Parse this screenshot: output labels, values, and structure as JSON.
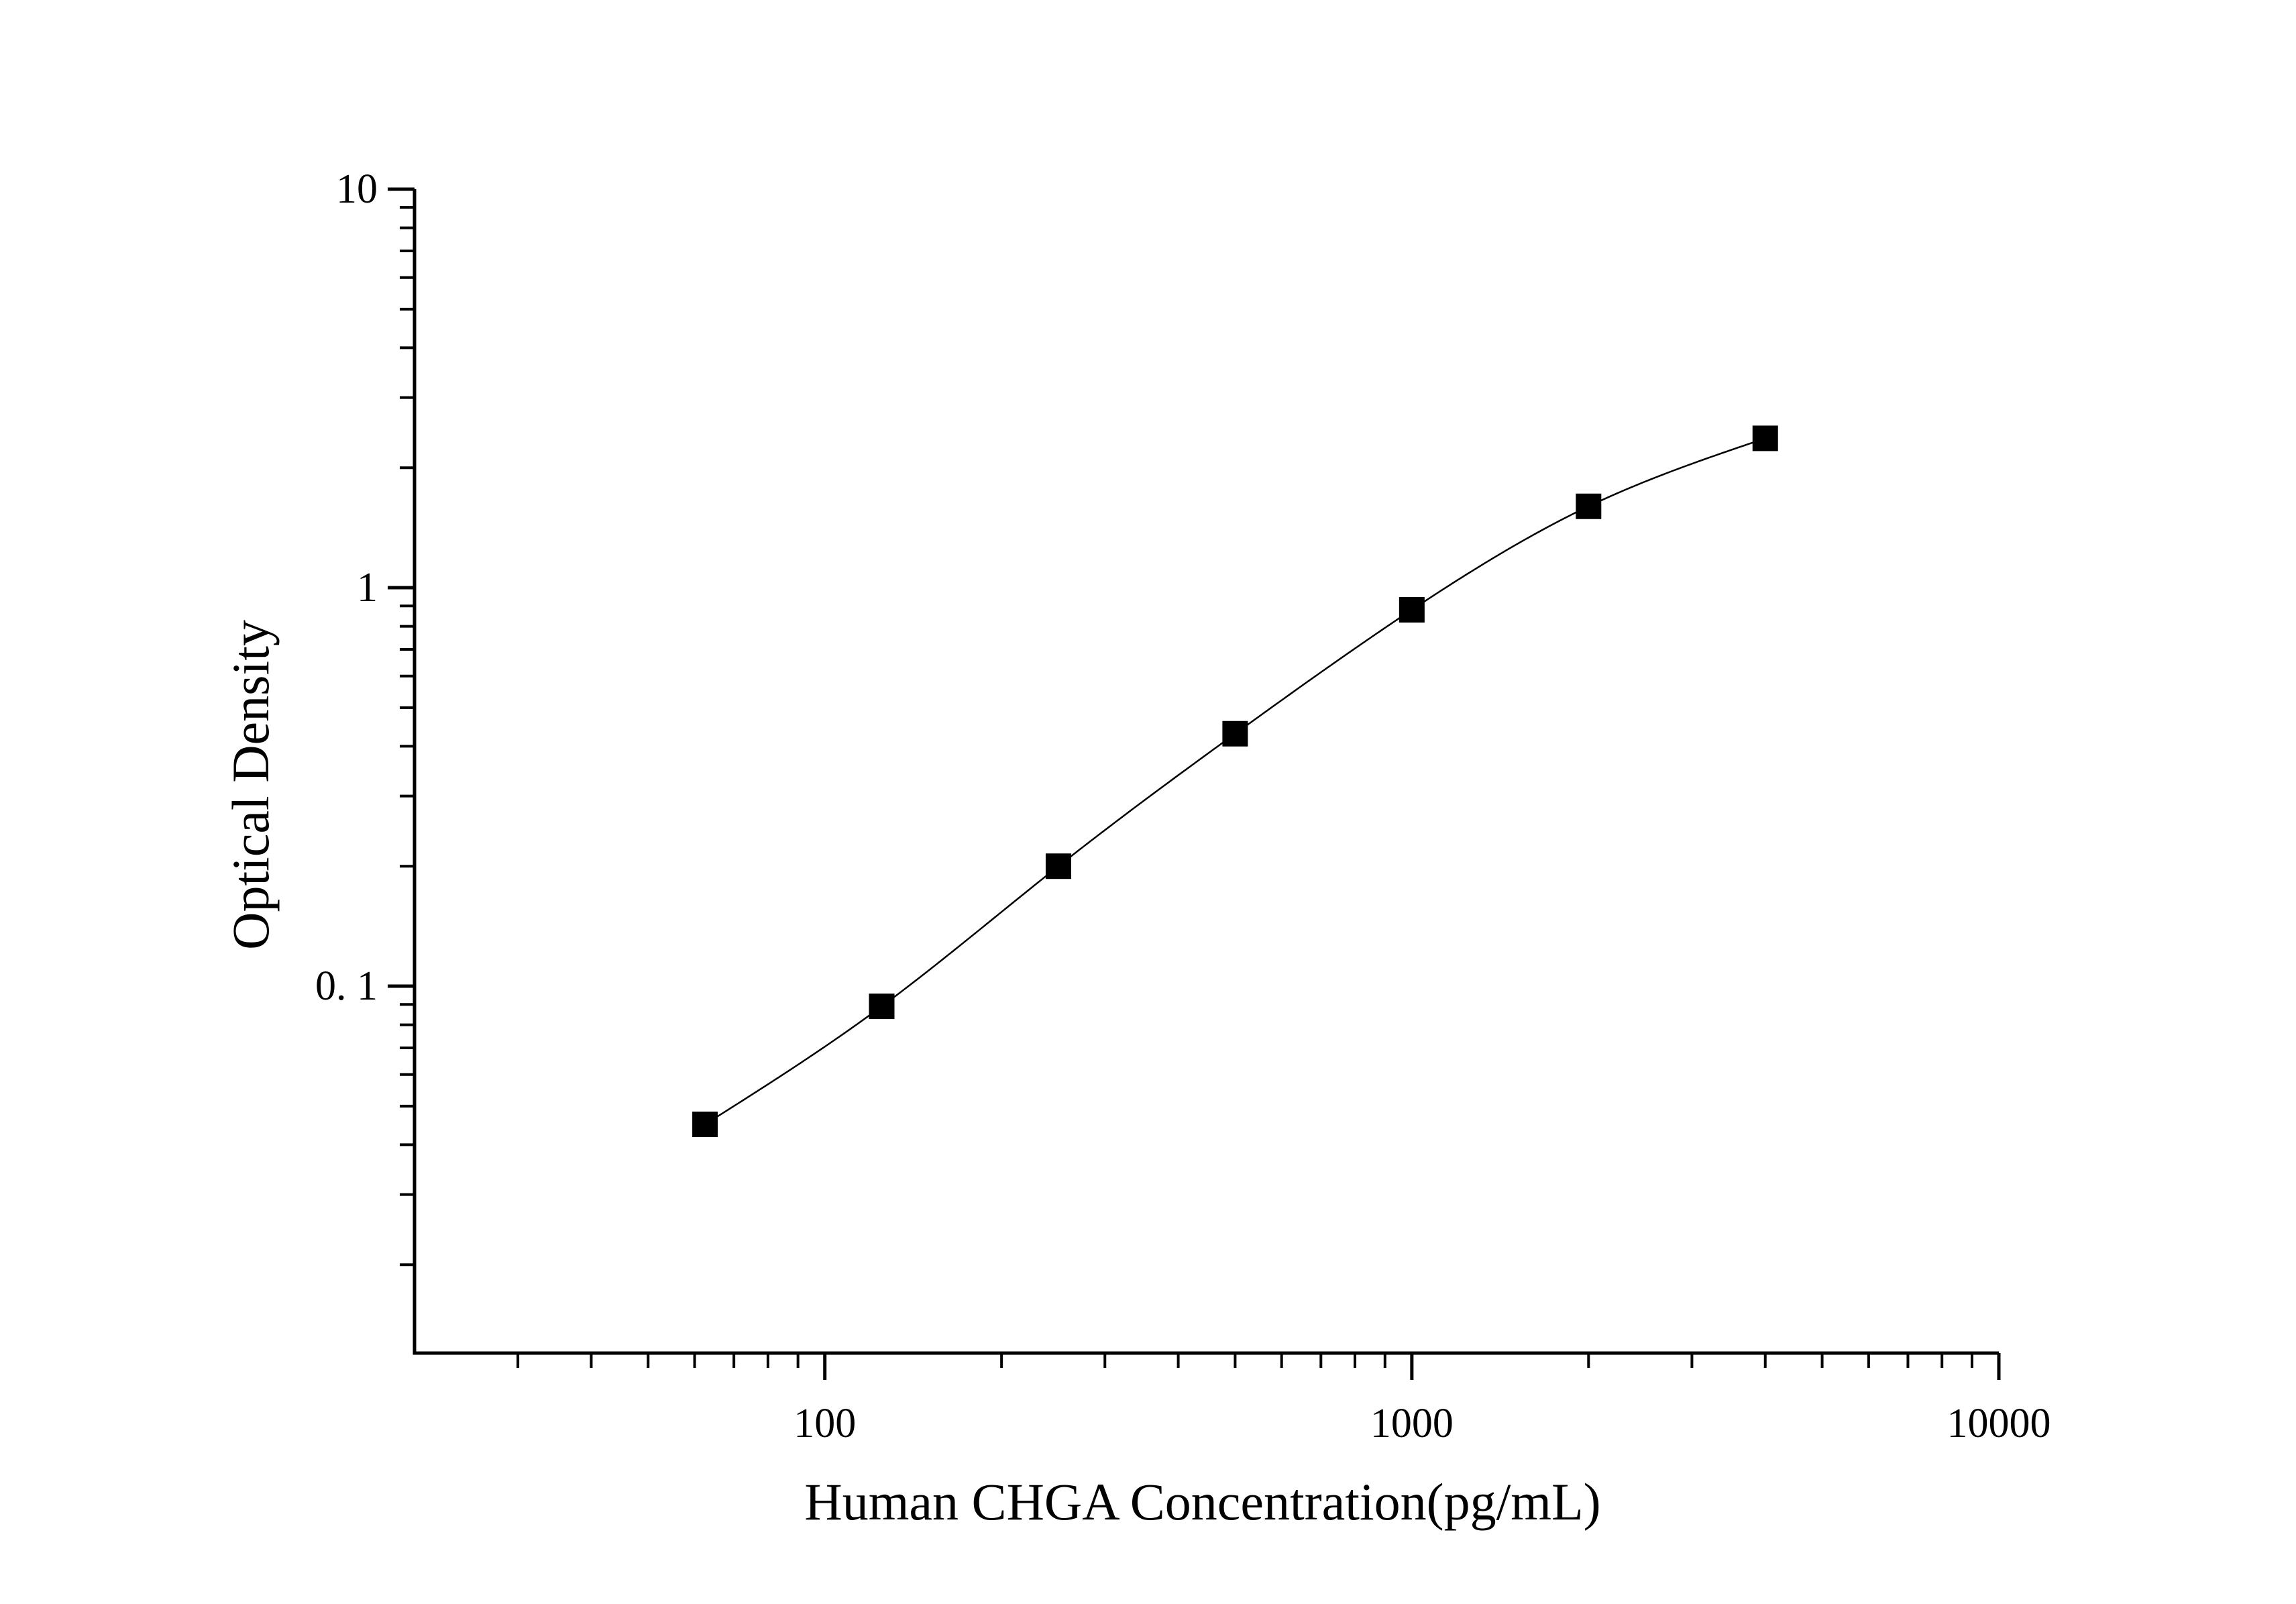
{
  "chart_data": {
    "type": "scatter",
    "xlabel": "Human CHGA Concentration(pg/mL)",
    "ylabel": "Optical Density",
    "x_scale": "log",
    "y_scale": "log",
    "xlim": [
      20,
      10000
    ],
    "ylim": [
      0.012,
      10
    ],
    "x_ticks": [
      {
        "value": 100,
        "label": "100"
      },
      {
        "value": 1000,
        "label": "1000"
      },
      {
        "value": 10000,
        "label": "10000"
      }
    ],
    "y_ticks": [
      {
        "value": 0.1,
        "label": "0. 1"
      },
      {
        "value": 1,
        "label": "1"
      },
      {
        "value": 10,
        "label": "10"
      }
    ],
    "grid": false,
    "legend": "none",
    "series": [
      {
        "marker": "square",
        "color": "#000000",
        "fit_curve": true,
        "x": [
          62.5,
          125,
          250,
          500,
          1000,
          2000,
          4000
        ],
        "y": [
          0.045,
          0.089,
          0.2,
          0.43,
          0.88,
          1.6,
          2.37
        ]
      }
    ]
  }
}
